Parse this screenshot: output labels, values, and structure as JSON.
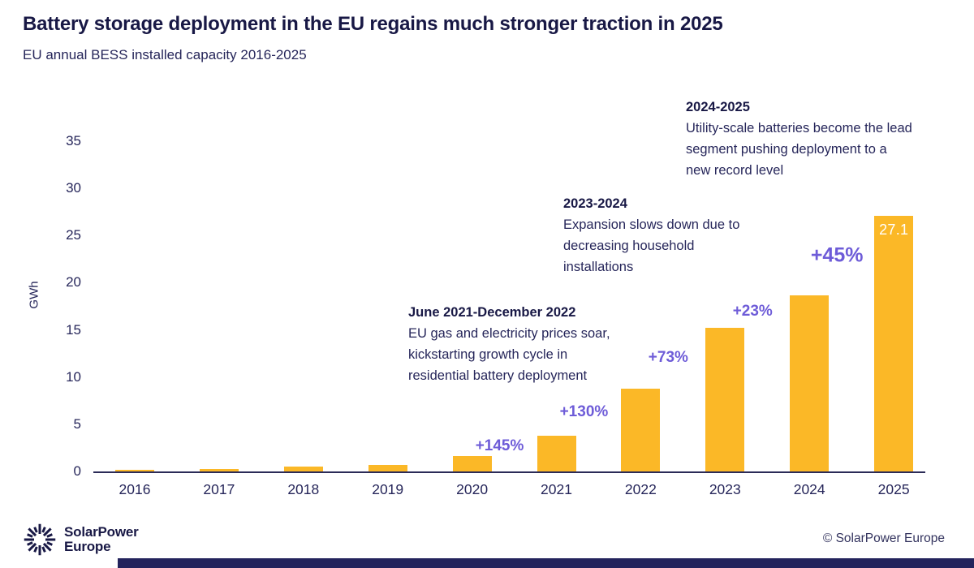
{
  "header": {
    "title": "Battery storage deployment in the EU regains much stronger traction in 2025",
    "subtitle": "EU annual BESS installed capacity 2016-2025"
  },
  "chart_data": {
    "type": "bar",
    "title": "Battery storage deployment in the EU regains much stronger traction in 2025",
    "subtitle": "EU annual BESS installed capacity 2016-2025",
    "categories": [
      "2016",
      "2017",
      "2018",
      "2019",
      "2020",
      "2021",
      "2022",
      "2023",
      "2024",
      "2025"
    ],
    "values": [
      0.2,
      0.3,
      0.5,
      0.7,
      1.6,
      3.8,
      8.8,
      15.2,
      18.7,
      27.1
    ],
    "xlabel": "",
    "ylabel": "GWh",
    "ylim": [
      0,
      35
    ],
    "yticks": [
      0,
      5,
      10,
      15,
      20,
      25,
      30,
      35
    ],
    "grid": false,
    "legend": "none",
    "bar_color": "#FBB827",
    "growth_color": "#6E5CD8",
    "bar_value_labels": [
      {
        "category": "2025",
        "label": "27.1"
      }
    ],
    "growth_labels": [
      {
        "label": "+145%",
        "from": "2020",
        "to": "2021",
        "emphasis": false
      },
      {
        "label": "+130%",
        "from": "2021",
        "to": "2022",
        "emphasis": false
      },
      {
        "label": "+73%",
        "from": "2022",
        "to": "2023",
        "emphasis": false
      },
      {
        "label": "+23%",
        "from": "2023",
        "to": "2024",
        "emphasis": false
      },
      {
        "label": "+45%",
        "from": "2024",
        "to": "2025",
        "emphasis": true
      }
    ],
    "annotations": [
      {
        "heading": "June 2021-December 2022",
        "body": "EU gas and electricity prices soar, kickstarting growth cycle in residential battery deployment"
      },
      {
        "heading": "2023-2024",
        "body": "Expansion slows down due to decreasing household installations"
      },
      {
        "heading": "2024-2025",
        "body": "Utility-scale batteries become the lead segment pushing deployment to a new record level"
      }
    ]
  },
  "footer": {
    "logo_line1": "SolarPower",
    "logo_line2": "Europe",
    "copyright": "© SolarPower Europe"
  },
  "colors": {
    "navy": "#181845",
    "bar_yellow": "#FBB827",
    "growth_purple": "#6E5CD8",
    "axis": "#2b2b57"
  }
}
